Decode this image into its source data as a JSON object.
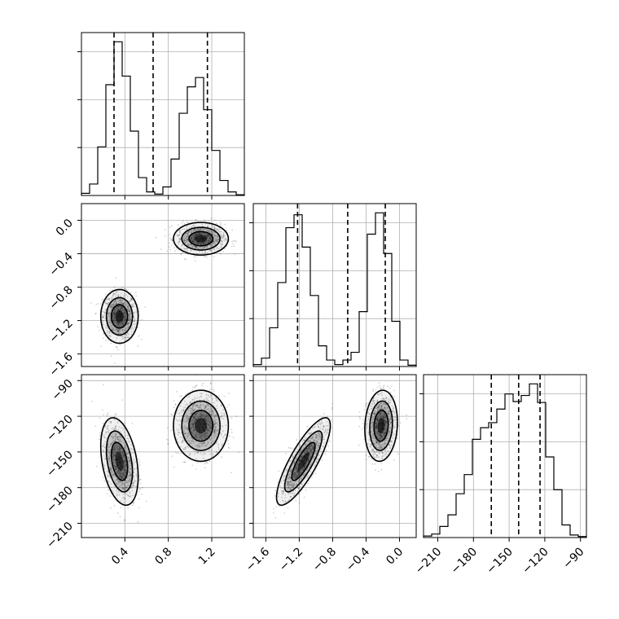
{
  "chart_data": {
    "type": "corner",
    "grid": true,
    "colors": {
      "line": "#000000",
      "grid": "#b0b0b0",
      "points": "#000000",
      "density": "#000000"
    },
    "parameters": [
      {
        "xlim": [
          0.0,
          1.5
        ],
        "ticks": [
          0.4,
          0.8,
          1.2
        ],
        "tick_labels": [
          "0.4",
          "0.8",
          "1.2"
        ]
      },
      {
        "xlim": [
          -1.75,
          0.2
        ],
        "ticks": [
          -1.6,
          -1.2,
          -0.8,
          -0.4,
          0.0
        ],
        "tick_labels": [
          "−1.6",
          "−1.2",
          "−0.8",
          "−0.4",
          "0.0"
        ]
      },
      {
        "xlim": [
          -222,
          -85
        ],
        "ticks": [
          -210,
          -180,
          -150,
          -120,
          -90
        ],
        "tick_labels": [
          "−210",
          "−180",
          "−150",
          "−120",
          "−90"
        ]
      }
    ],
    "histograms": [
      {
        "parameter": 0,
        "bin_edges": [
          0.0,
          0.075,
          0.15,
          0.225,
          0.3,
          0.375,
          0.45,
          0.525,
          0.6,
          0.675,
          0.75,
          0.825,
          0.9,
          0.975,
          1.05,
          1.125,
          1.2,
          1.275,
          1.35,
          1.425,
          1.5
        ],
        "counts": [
          0.3,
          1.6,
          6.8,
          15.5,
          21.5,
          16.7,
          9.0,
          2.5,
          0.5,
          0.2,
          1.2,
          5.1,
          11.5,
          15.2,
          16.5,
          12.0,
          6.3,
          2.1,
          0.5,
          0.1
        ],
        "quantiles": [
          0.3,
          0.66,
          1.16
        ]
      },
      {
        "parameter": 1,
        "bin_edges": [
          -1.75,
          -1.6525,
          -1.555,
          -1.4575,
          -1.36,
          -1.2625,
          -1.165,
          -1.0675,
          -0.97,
          -0.8725,
          -0.775,
          -0.6775,
          -0.58,
          -0.4825,
          -0.385,
          -0.2875,
          -0.19,
          -0.0925,
          0.005,
          0.1025,
          0.2
        ],
        "counts": [
          0.3,
          1.3,
          6.0,
          13.0,
          21.5,
          23.5,
          18.5,
          11.0,
          3.2,
          1.0,
          0.3,
          1.0,
          2.2,
          8.5,
          20.5,
          23.8,
          17.5,
          7.0,
          1.0,
          0.2
        ],
        "quantiles": [
          -1.22,
          -0.62,
          -0.17
        ]
      },
      {
        "parameter": 2,
        "bin_edges": [
          -222,
          -215.15,
          -208.3,
          -201.45,
          -194.6,
          -187.75,
          -180.9,
          -174.05,
          -167.2,
          -160.35,
          -153.5,
          -146.65,
          -139.8,
          -132.95,
          -126.1,
          -119.25,
          -112.4,
          -105.55,
          -98.7,
          -91.85,
          -85
        ],
        "counts": [
          0.3,
          0.7,
          2.2,
          4.5,
          8.7,
          12.5,
          19.5,
          21.8,
          22.8,
          25.5,
          28.5,
          27.0,
          28.2,
          30.5,
          26.8,
          16.0,
          9.5,
          2.5,
          0.5,
          0.2
        ],
        "quantiles": [
          -165,
          -142,
          -124
        ]
      }
    ],
    "joint_panels": [
      {
        "x_param": 0,
        "y_param": 1,
        "ylim": [
          -1.75,
          0.2
        ],
        "y_ticks": [
          -1.6,
          -1.2,
          -0.8,
          -0.4,
          0.0
        ],
        "y_tick_labels": [
          "−1.6",
          "−1.2",
          "−0.8",
          "−0.4",
          "0.0"
        ],
        "clusters": [
          {
            "mean": [
              0.35,
              -1.15
            ],
            "sd": [
              0.075,
              0.14
            ],
            "rho": 0.0,
            "weight": 0.5
          },
          {
            "mean": [
              1.1,
              -0.22
            ],
            "sd": [
              0.11,
              0.085
            ],
            "rho": 0.0,
            "weight": 0.5
          }
        ]
      },
      {
        "x_param": 0,
        "y_param": 2,
        "ylim": [
          -222,
          -85
        ],
        "y_ticks": [
          -210,
          -180,
          -150,
          -120,
          -90
        ],
        "y_tick_labels": [
          "−210",
          "−180",
          "−150",
          "−120",
          "−90"
        ],
        "clusters": [
          {
            "mean": [
              0.35,
              -158
            ],
            "sd": [
              0.075,
              16
            ],
            "rho": -0.35,
            "weight": 0.5
          },
          {
            "mean": [
              1.1,
              -128
            ],
            "sd": [
              0.11,
              13
            ],
            "rho": 0.0,
            "weight": 0.5
          }
        ]
      },
      {
        "x_param": 1,
        "y_param": 2,
        "ylim": [
          -222,
          -85
        ],
        "y_ticks": [
          -210,
          -180,
          -150,
          -120,
          -90
        ],
        "y_tick_labels": [
          "−210",
          "−180",
          "−150",
          "−120",
          "−90"
        ],
        "clusters": [
          {
            "mean": [
              -1.15,
              -158
            ],
            "sd": [
              0.14,
              16
            ],
            "rho": 0.82,
            "weight": 0.5
          },
          {
            "mean": [
              -0.22,
              -128
            ],
            "sd": [
              0.085,
              13
            ],
            "rho": 0.1,
            "weight": 0.5
          }
        ]
      }
    ]
  }
}
